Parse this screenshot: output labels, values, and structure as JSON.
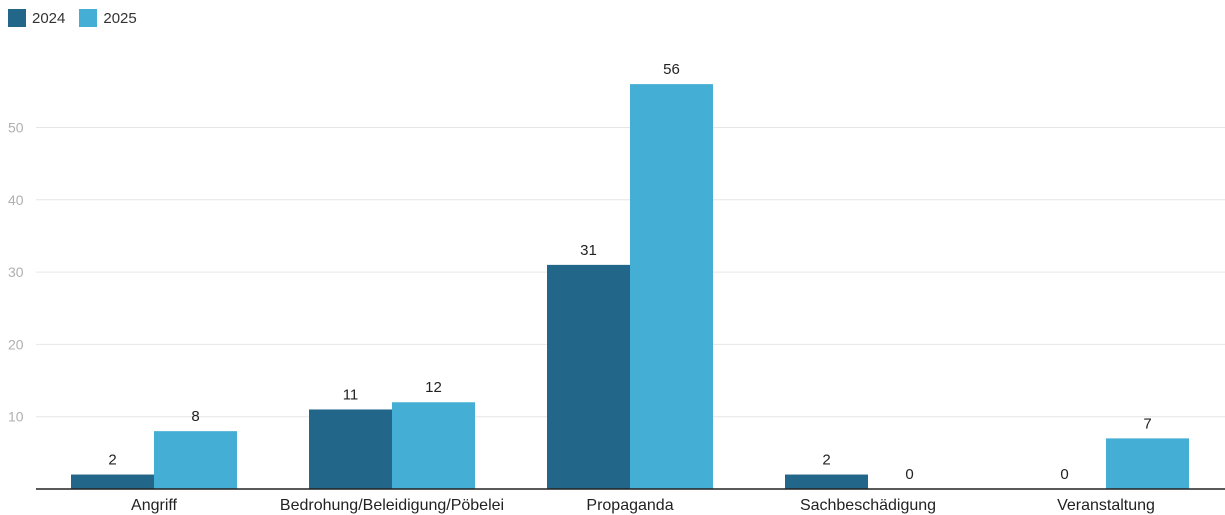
{
  "legend": [
    {
      "label": "2024",
      "color": "#22668a"
    },
    {
      "label": "2025",
      "color": "#45aed4"
    }
  ],
  "chart_data": {
    "type": "bar",
    "categories": [
      "Angriff",
      "Bedrohung/Beleidigung/Pöbelei",
      "Propaganda",
      "Sachbeschädigung",
      "Veranstaltung"
    ],
    "series": [
      {
        "name": "2024",
        "values": [
          2,
          11,
          31,
          2,
          0
        ],
        "color": "#22668a"
      },
      {
        "name": "2025",
        "values": [
          8,
          12,
          56,
          0,
          7
        ],
        "color": "#45aed4"
      }
    ],
    "yticks": [
      10,
      20,
      30,
      40,
      50
    ],
    "ylim": [
      0,
      60
    ],
    "grid": true,
    "legend_position": "top-left"
  }
}
